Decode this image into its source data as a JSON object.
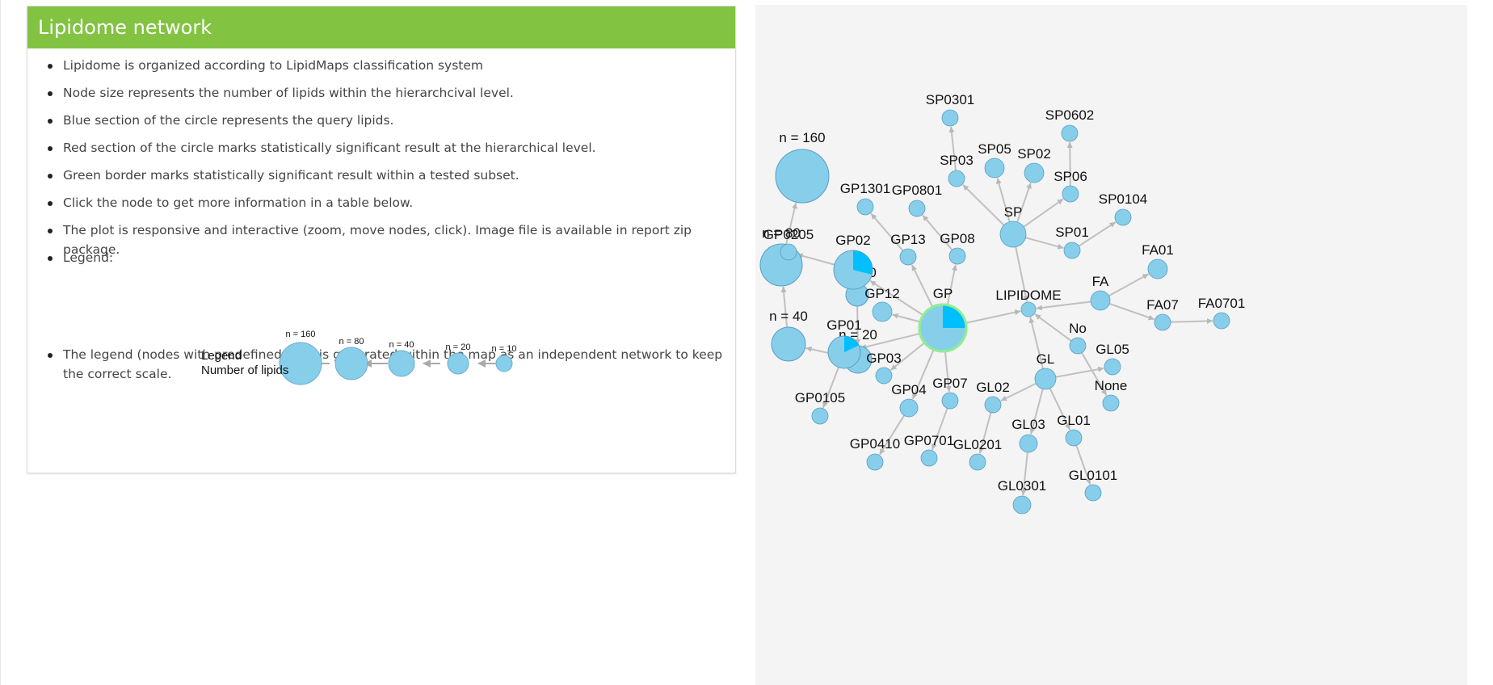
{
  "panel": {
    "title": "Lipidome network",
    "bullets": [
      "Lipidome is organized according to LipidMaps classification system",
      "Node size represents the number of lipids within the hierarchcival level.",
      "Blue section of the circle represents the query lipids.",
      "Red section of the circle marks statistically significant result at the hierarchical level.",
      "Green border marks statistically significant result within a tested subset.",
      "Click the node to get more information in a table below.",
      "The plot is responsive and interactive (zoom, move nodes, click). Image file is available in report zip package.",
      "Legend:",
      "The legend (nodes with predefined size) is generated within the map as an independent network to keep the correct scale."
    ],
    "legend_image": {
      "title_line1": "Legend",
      "title_line2": "Number of lipids",
      "labels": [
        "n = 160",
        "n = 80",
        "n = 40",
        "n = 20",
        "n = 10"
      ]
    }
  },
  "colors": {
    "header_green": "#82c341",
    "node_fill": "#87ceeb",
    "query_blue": "#00bfff",
    "significant_border": "#90ee90",
    "edge": "#c0c0c0",
    "canvas_bg": "#f4f4f4"
  },
  "network": {
    "legend_nodes": [
      {
        "id": "n160",
        "label": "n = 160",
        "size_n": 160
      },
      {
        "id": "n80",
        "label": "n = 80",
        "size_n": 80
      },
      {
        "id": "n40",
        "label": "n = 40",
        "size_n": 40
      },
      {
        "id": "n20",
        "label": "n = 20",
        "size_n": 20
      },
      {
        "id": "n10",
        "label": "n = 10",
        "size_n": 10
      }
    ],
    "legend_edges": [
      [
        "n80",
        "n160"
      ],
      [
        "n40",
        "n80"
      ],
      [
        "n20",
        "n40"
      ],
      [
        "n10",
        "n20"
      ]
    ],
    "nodes": [
      {
        "id": "GP",
        "label": "GP",
        "query_fraction": 0.25,
        "significant_border": true
      },
      {
        "id": "LIPIDOME",
        "label": "LIPIDOME"
      },
      {
        "id": "GP02",
        "label": "GP02",
        "query_fraction": 0.29
      },
      {
        "id": "GP01",
        "label": "GP01",
        "query_fraction": 0.18
      },
      {
        "id": "GP0205",
        "label": "GP0205"
      },
      {
        "id": "GP1301",
        "label": "GP1301"
      },
      {
        "id": "GP0801",
        "label": "GP0801"
      },
      {
        "id": "GP13",
        "label": "GP13"
      },
      {
        "id": "GP08",
        "label": "GP08"
      },
      {
        "id": "GP12",
        "label": "GP12"
      },
      {
        "id": "GP03",
        "label": "GP03"
      },
      {
        "id": "GP04",
        "label": "GP04"
      },
      {
        "id": "GP07",
        "label": "GP07"
      },
      {
        "id": "GP0105",
        "label": "GP0105"
      },
      {
        "id": "GP0410",
        "label": "GP0410"
      },
      {
        "id": "GP0701",
        "label": "GP0701"
      },
      {
        "id": "SP",
        "label": "SP"
      },
      {
        "id": "SP0301",
        "label": "SP0301"
      },
      {
        "id": "SP03",
        "label": "SP03"
      },
      {
        "id": "SP05",
        "label": "SP05"
      },
      {
        "id": "SP02",
        "label": "SP02"
      },
      {
        "id": "SP0602",
        "label": "SP0602"
      },
      {
        "id": "SP06",
        "label": "SP06"
      },
      {
        "id": "SP0104",
        "label": "SP0104"
      },
      {
        "id": "SP01",
        "label": "SP01"
      },
      {
        "id": "FA",
        "label": "FA"
      },
      {
        "id": "FA01",
        "label": "FA01"
      },
      {
        "id": "FA07",
        "label": "FA07"
      },
      {
        "id": "FA0701",
        "label": "FA0701"
      },
      {
        "id": "GL",
        "label": "GL"
      },
      {
        "id": "No",
        "label": "No"
      },
      {
        "id": "GL05",
        "label": "GL05"
      },
      {
        "id": "None",
        "label": "None"
      },
      {
        "id": "GL02",
        "label": "GL02"
      },
      {
        "id": "GL03",
        "label": "GL03"
      },
      {
        "id": "GL01",
        "label": "GL01"
      },
      {
        "id": "GL0201",
        "label": "GL0201"
      },
      {
        "id": "GL0301",
        "label": "GL0301"
      },
      {
        "id": "GL0101",
        "label": "GL0101"
      }
    ],
    "edges": [
      [
        "GP",
        "LIPIDOME"
      ],
      [
        "SP",
        "LIPIDOME"
      ],
      [
        "FA",
        "LIPIDOME"
      ],
      [
        "GL",
        "LIPIDOME"
      ],
      [
        "No",
        "LIPIDOME"
      ],
      [
        "GP",
        "GP02"
      ],
      [
        "GP",
        "GP01"
      ],
      [
        "GP",
        "GP13"
      ],
      [
        "GP",
        "GP08"
      ],
      [
        "GP",
        "GP12"
      ],
      [
        "GP",
        "GP03"
      ],
      [
        "GP",
        "GP04"
      ],
      [
        "GP",
        "GP07"
      ],
      [
        "GP02",
        "GP0205"
      ],
      [
        "GP13",
        "GP1301"
      ],
      [
        "GP08",
        "GP0801"
      ],
      [
        "GP01",
        "GP0105"
      ],
      [
        "GP04",
        "GP0410"
      ],
      [
        "GP07",
        "GP0701"
      ],
      [
        "SP",
        "SP03"
      ],
      [
        "SP",
        "SP05"
      ],
      [
        "SP",
        "SP02"
      ],
      [
        "SP",
        "SP06"
      ],
      [
        "SP",
        "SP01"
      ],
      [
        "SP03",
        "SP0301"
      ],
      [
        "SP06",
        "SP0602"
      ],
      [
        "SP01",
        "SP0104"
      ],
      [
        "FA",
        "FA01"
      ],
      [
        "FA",
        "FA07"
      ],
      [
        "FA07",
        "FA0701"
      ],
      [
        "GL",
        "GL05"
      ],
      [
        "GL",
        "GL02"
      ],
      [
        "GL",
        "GL03"
      ],
      [
        "GL",
        "GL01"
      ],
      [
        "No",
        "None"
      ],
      [
        "GL02",
        "GL0201"
      ],
      [
        "GL03",
        "GL0301"
      ],
      [
        "GL01",
        "GL0101"
      ]
    ]
  }
}
